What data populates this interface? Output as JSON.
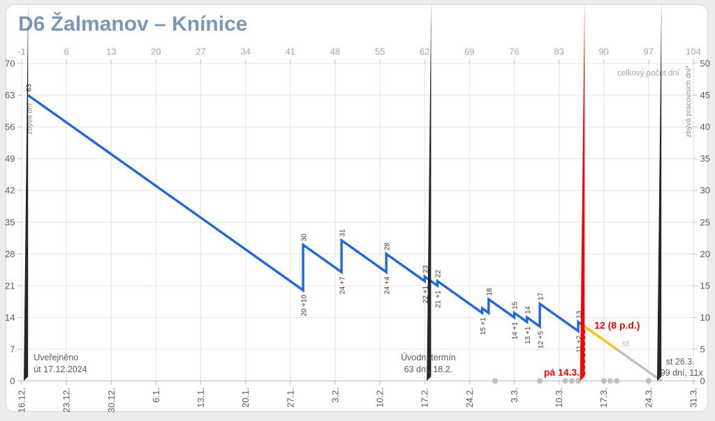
{
  "title": "D6 Žalmanov – Knínice",
  "colors": {
    "title": "#7c96b4",
    "line_blue": "#1d66e5",
    "line_orange": "#ffc000",
    "line_gray": "#bfbfbf",
    "accent_red": "#ff0000",
    "diamond_black": "#262626",
    "dot_gray": "#bfbfbf",
    "grid": "#e4e4e4",
    "axis_line": "#c2c2c2",
    "tick": "#bfbfbf",
    "axis_num_dark": "#595959",
    "axis_num_light": "#a6a6a6",
    "annot_dark": "#383838",
    "annot_gray": "#8c8c8c",
    "milestone_text": "#595959"
  },
  "chart_data": {
    "type": "line",
    "title": "D6 Žalmanov – Knínice",
    "grid": true,
    "axes": {
      "top": {
        "label": "celkový počet dní",
        "ticks": [
          -1,
          6,
          13,
          20,
          27,
          34,
          41,
          48,
          55,
          62,
          69,
          76,
          83,
          90,
          97,
          104
        ],
        "range": [
          -1,
          104
        ]
      },
      "left": {
        "label": "zbývá dní",
        "ticks": [
          0,
          7,
          14,
          21,
          28,
          35,
          42,
          49,
          56,
          63,
          70
        ],
        "range": [
          0,
          70
        ]
      },
      "right": {
        "label": "zbývá pracovních dní*",
        "ticks": [
          0,
          5,
          10,
          15,
          20,
          25,
          30,
          35,
          40,
          45,
          50
        ],
        "range": [
          0,
          50
        ]
      },
      "bottom": {
        "ticks": [
          "16.12.",
          "23.12.",
          "30.12.",
          "6.1.",
          "13.1.",
          "20.1.",
          "27.1.",
          "3.2.",
          "10.2.",
          "17.2.",
          "24.2.",
          "3.3.",
          "10.3.",
          "17.3.",
          "24.3.",
          "31.3."
        ]
      }
    },
    "series": [
      {
        "name": "zbyva-dni",
        "color_key": "line_blue",
        "points": [
          [
            0,
            63
          ],
          [
            43,
            20
          ],
          [
            43,
            30
          ],
          [
            49,
            24
          ],
          [
            49,
            31
          ],
          [
            56,
            24
          ],
          [
            56,
            28
          ],
          [
            62,
            22
          ],
          [
            62,
            23
          ],
          [
            64,
            21
          ],
          [
            64,
            22
          ],
          [
            71,
            15
          ],
          [
            71,
            16
          ],
          [
            72,
            15
          ],
          [
            72,
            18
          ],
          [
            76,
            14
          ],
          [
            76,
            15
          ],
          [
            78,
            13
          ],
          [
            78,
            14
          ],
          [
            80,
            12
          ],
          [
            80,
            17
          ],
          [
            86,
            11
          ],
          [
            86,
            13
          ],
          [
            87,
            12
          ]
        ]
      },
      {
        "name": "projekce-pracovni-dny",
        "color_key": "line_orange",
        "points": [
          [
            87,
            12
          ],
          [
            92,
            7
          ]
        ]
      },
      {
        "name": "projekce-zbytek",
        "color_key": "line_gray",
        "points": [
          [
            92,
            7
          ],
          [
            99,
            0
          ]
        ]
      }
    ],
    "labels_above": [
      {
        "day": 0,
        "value": 63,
        "text": "63"
      },
      {
        "day": 43,
        "value": 30,
        "text": "30"
      },
      {
        "day": 49,
        "value": 31,
        "text": "31"
      },
      {
        "day": 56,
        "value": 28,
        "text": "28"
      },
      {
        "day": 62,
        "value": 23,
        "text": "23"
      },
      {
        "day": 64,
        "value": 22,
        "text": "22"
      },
      {
        "day": 72,
        "value": 18,
        "text": "18"
      },
      {
        "day": 76,
        "value": 15,
        "text": "15"
      },
      {
        "day": 78,
        "value": 14,
        "text": "14"
      },
      {
        "day": 80,
        "value": 17,
        "text": "17"
      },
      {
        "day": 86,
        "value": 13,
        "text": "13"
      }
    ],
    "labels_below": [
      {
        "day": 43,
        "value": 20,
        "text": "20 +10"
      },
      {
        "day": 49,
        "value": 24,
        "text": "24 +7"
      },
      {
        "day": 56,
        "value": 24,
        "text": "24 +4"
      },
      {
        "day": 62,
        "value": 22,
        "text": "22 +1"
      },
      {
        "day": 64,
        "value": 21,
        "text": "21 +1"
      },
      {
        "day": 71,
        "value": 15,
        "text": "15 +1"
      },
      {
        "day": 76,
        "value": 14,
        "text": "14 +1"
      },
      {
        "day": 78,
        "value": 13,
        "text": "13 +1"
      },
      {
        "day": 80,
        "value": 12,
        "text": "12 +5"
      },
      {
        "day": 86,
        "value": 11,
        "text": "11 +2"
      }
    ],
    "milestones": [
      {
        "name": "uverejneno",
        "day": 0,
        "lines": [
          "Uveřejněno",
          "út 17.12.2024"
        ],
        "align": "left"
      },
      {
        "name": "uvodni-termin",
        "day": 63,
        "lines": [
          "Úvodní termín",
          "63 dní, 18.2."
        ],
        "align": "center"
      },
      {
        "name": "finalni-termin",
        "day": 99,
        "lines": [
          "st 26.3.",
          "99 dní, 11x"
        ],
        "align": "center-low"
      }
    ],
    "today": {
      "day": 87,
      "value": 12,
      "date_label": "pá 14.3.",
      "value_label": "12 (8 p.d.)"
    },
    "projection_day_label": {
      "text": "st",
      "day": 93.4,
      "value": 7.6
    },
    "gray_dots_days": [
      73,
      80,
      84,
      85,
      86,
      90,
      91,
      92,
      97
    ]
  }
}
